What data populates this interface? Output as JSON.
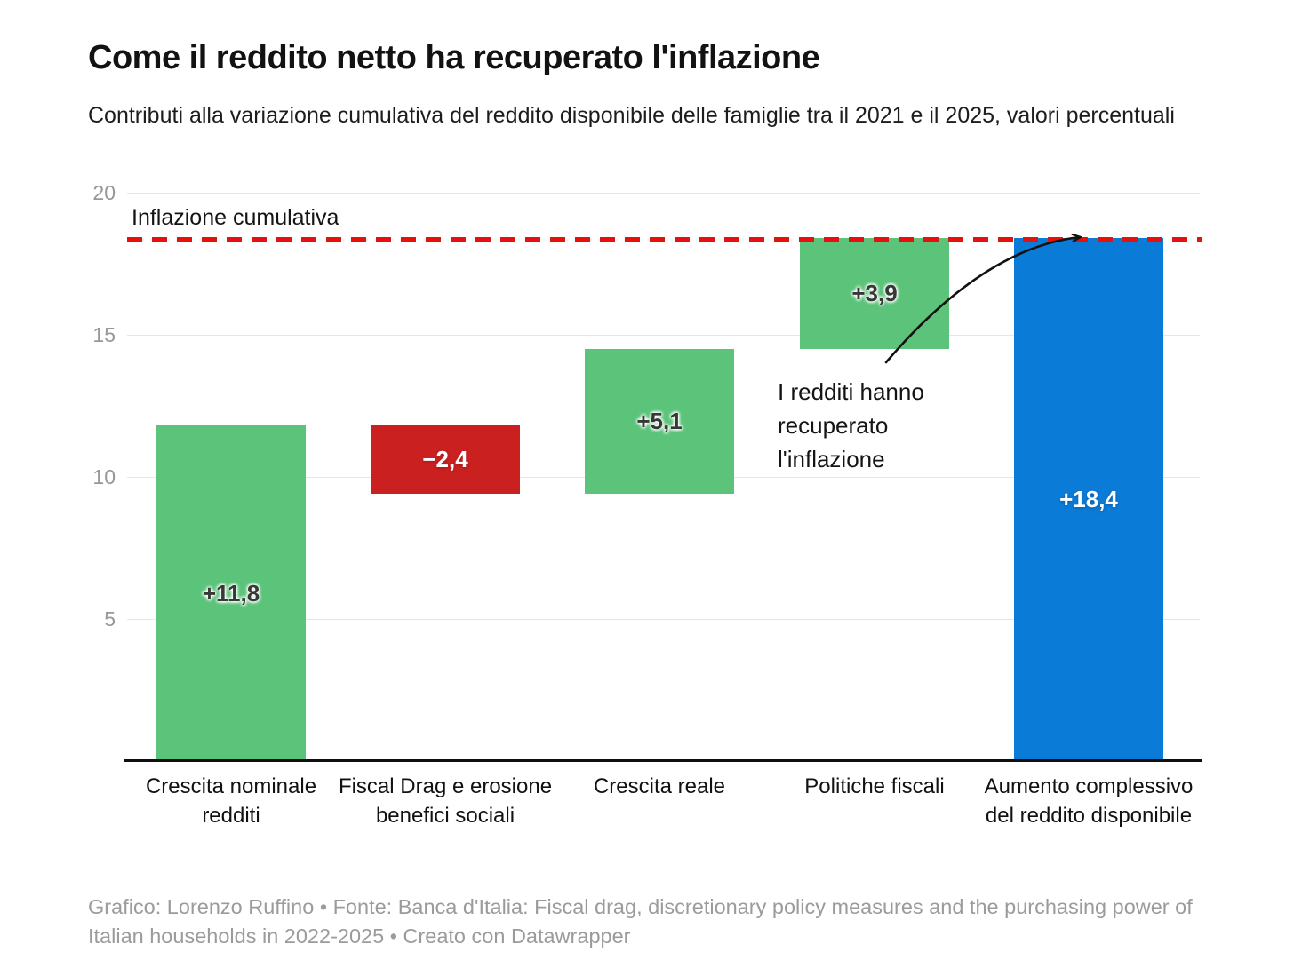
{
  "title": "Come il reddito netto ha recuperato l'inflazione",
  "subtitle": "Contributi alla variazione cumulativa del reddito disponibile delle famiglie tra il 2021 e il 2025, valori percentuali",
  "footer": "Grafico: Lorenzo Ruffino • Fonte: Banca d'Italia: Fiscal drag, discretionary policy measures and the purchasing power of Italian households in 2022-2025 • Creato con Datawrapper",
  "colors": {
    "positive_bar": "#5bc47a",
    "negative_bar": "#cb2020",
    "total_bar": "#0b7bd8",
    "inflation_line": "#e8100e",
    "gridline": "#e6e6e6",
    "tick_text": "#979797",
    "footer_text": "#9b9b9b",
    "dark_label": "#383838",
    "white_label": "#ffffff"
  },
  "chart_data": {
    "type": "bar",
    "subtype": "waterfall",
    "title": "Come il reddito netto ha recuperato l'inflazione",
    "subtitle": "Contributi alla variazione cumulativa del reddito disponibile delle famiglie tra il 2021 e il 2025, valori percentuali",
    "xlabel": "",
    "ylabel": "",
    "ylim": [
      0,
      20
    ],
    "yticks": [
      5,
      10,
      15,
      20
    ],
    "grid": true,
    "reference_line": {
      "label": "Inflazione cumulativa",
      "value": 18.4,
      "style": "dashed-red"
    },
    "categories": [
      "Crescita nominale redditi",
      "Fiscal Drag e erosione benefici sociali",
      "Crescita reale",
      "Politiche fiscali",
      "Aumento complessivo del reddito disponibile"
    ],
    "bars": [
      {
        "category": "Crescita nominale redditi",
        "label": "+11,8",
        "value": 11.8,
        "start": 0,
        "end": 11.8,
        "kind": "positive",
        "label_style": "dark"
      },
      {
        "category": "Fiscal Drag e erosione benefici sociali",
        "label": "−2,4",
        "value": -2.4,
        "start": 11.8,
        "end": 9.4,
        "kind": "negative",
        "label_style": "white"
      },
      {
        "category": "Crescita reale",
        "label": "+5,1",
        "value": 5.1,
        "start": 9.4,
        "end": 14.5,
        "kind": "positive",
        "label_style": "dark"
      },
      {
        "category": "Politiche fiscali",
        "label": "+3,9",
        "value": 3.9,
        "start": 14.5,
        "end": 18.4,
        "kind": "positive",
        "label_style": "dark"
      },
      {
        "category": "Aumento complessivo del reddito disponibile",
        "label": "+18,4",
        "value": 18.4,
        "start": 0,
        "end": 18.4,
        "kind": "total",
        "label_style": "white"
      }
    ],
    "annotation": {
      "lines": [
        "I redditi hanno",
        "recuperato",
        "l'inflazione"
      ]
    },
    "legend_position": "none"
  }
}
